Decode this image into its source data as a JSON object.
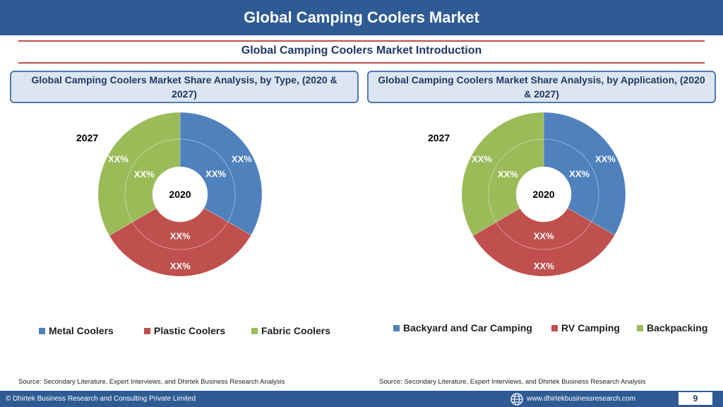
{
  "header": {
    "title": "Global Camping Coolers Market"
  },
  "subtitle": "Global Camping Coolers Market  Introduction",
  "colors": {
    "blue": "#4f81bd",
    "red": "#c0504d",
    "green": "#9bbb59",
    "header_bg": "#2f5b94"
  },
  "chart_data": [
    {
      "type": "pie",
      "title": "Global Camping Coolers Market  Share Analysis, by Type, (2020 & 2027)",
      "outer_label": "2027",
      "inner_label": "2020",
      "categories": [
        "Metal Coolers",
        "Plastic Coolers",
        "Fabric Coolers"
      ],
      "series": [
        {
          "name": "2027",
          "values": [
            33.3,
            33.3,
            33.4
          ],
          "labels": [
            "XX%",
            "XX%",
            "XX%"
          ]
        },
        {
          "name": "2020",
          "values": [
            33.3,
            33.3,
            33.4
          ],
          "labels": [
            "XX%",
            "XX%",
            "XX%"
          ]
        }
      ],
      "legend": "bottom",
      "source": "Source: Secondary Literature, Expert Interviews, and Dhirtek Business Research Analysis"
    },
    {
      "type": "pie",
      "title": "Global Camping Coolers Market  Share Analysis, by Application, (2020 & 2027)",
      "outer_label": "2027",
      "inner_label": "2020",
      "categories": [
        "Backyard and Car Camping",
        "RV Camping",
        "Backpacking"
      ],
      "series": [
        {
          "name": "2027",
          "values": [
            33.3,
            33.3,
            33.4
          ],
          "labels": [
            "XX%",
            "XX%",
            "XX%"
          ]
        },
        {
          "name": "2020",
          "values": [
            33.3,
            33.3,
            33.4
          ],
          "labels": [
            "XX%",
            "XX%",
            "XX%"
          ]
        }
      ],
      "legend": "bottom",
      "source": "Source: Secondary Literature, Expert Interviews, and Dhirtek Business Research Analysis"
    }
  ],
  "footer": {
    "copyright": "© Dhirtek Business Research and Consulting Private Limited",
    "website": "www.dhirtekbusinessresearch.com",
    "page": "9",
    "globe_icon": "globe-icon"
  }
}
